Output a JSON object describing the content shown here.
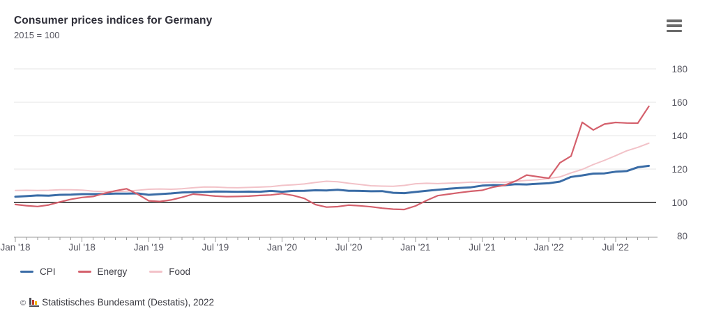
{
  "header": {
    "title": "Consumer prices indices for Germany",
    "subtitle": "2015 = 100",
    "menu_icon": "hamburger"
  },
  "chart_data": {
    "type": "line",
    "title": "Consumer prices indices for Germany",
    "subtitle": "2015 = 100",
    "x_start": "Jan 2018",
    "x_end": "Oct 2022",
    "x_frequency": "monthly",
    "x_tick_labels": [
      "Jan '18",
      "Jul '18",
      "Jan '19",
      "Jul '19",
      "Jan '20",
      "Jul '20",
      "Jan '21",
      "Jul '21",
      "Jan '22",
      "Jul '22"
    ],
    "ylim": [
      80,
      180
    ],
    "yticks": [
      80,
      100,
      120,
      140,
      160,
      180
    ],
    "baseline_value": 100,
    "grid": "horizontal",
    "legend_position": "bottom-left",
    "series": [
      {
        "name": "CPI",
        "color": "#3a6ca6",
        "line_width": 3,
        "values": [
          103.4,
          103.8,
          104.2,
          104.1,
          104.6,
          104.7,
          105.0,
          105.0,
          105.1,
          105.3,
          105.3,
          105.4,
          104.6,
          105.0,
          105.4,
          106.0,
          106.2,
          106.3,
          106.6,
          106.5,
          106.4,
          106.5,
          106.4,
          106.9,
          106.4,
          106.9,
          107.0,
          107.3,
          107.2,
          107.6,
          107.0,
          106.9,
          106.7,
          106.8,
          105.8,
          105.6,
          106.3,
          107.0,
          107.6,
          108.2,
          108.7,
          109.1,
          110.1,
          110.4,
          110.3,
          110.9,
          110.8,
          111.2,
          111.5,
          112.5,
          115.3,
          116.2,
          117.3,
          117.4,
          118.4,
          118.8,
          121.1,
          121.9
        ]
      },
      {
        "name": "Energy",
        "color": "#d4606c",
        "line_width": 2.2,
        "values": [
          98.8,
          98.1,
          97.6,
          98.5,
          100.3,
          101.9,
          103.0,
          103.6,
          105.4,
          107.0,
          108.2,
          105.0,
          101.0,
          100.6,
          101.5,
          103.1,
          105.0,
          104.4,
          103.8,
          103.5,
          103.6,
          103.8,
          104.2,
          104.5,
          105.3,
          104.2,
          102.4,
          98.7,
          97.2,
          97.5,
          98.4,
          98.0,
          97.4,
          96.6,
          96.0,
          95.8,
          97.9,
          101.2,
          104.1,
          105.0,
          105.9,
          106.7,
          107.3,
          109.2,
          110.3,
          112.8,
          116.4,
          115.4,
          114.5,
          123.8,
          127.8,
          148.0,
          143.4,
          146.9,
          147.9,
          147.6,
          147.5,
          157.6
        ]
      },
      {
        "name": "Food",
        "color": "#f2c2c8",
        "line_width": 2,
        "values": [
          107.2,
          107.3,
          107.2,
          107.3,
          107.6,
          107.6,
          107.4,
          106.8,
          106.5,
          106.6,
          106.8,
          107.3,
          107.9,
          108.1,
          107.9,
          108.2,
          108.8,
          109.3,
          109.2,
          108.9,
          108.8,
          109.0,
          109.2,
          109.5,
          110.2,
          110.6,
          111.1,
          112.0,
          112.7,
          112.4,
          111.5,
          110.8,
          110.0,
          109.8,
          109.7,
          110.2,
          111.2,
          111.5,
          111.3,
          111.6,
          111.8,
          112.2,
          111.9,
          112.2,
          112.1,
          112.7,
          113.2,
          113.6,
          114.4,
          115.3,
          117.7,
          119.8,
          122.7,
          125.2,
          128.0,
          130.9,
          133.0,
          135.5
        ]
      }
    ],
    "style": {
      "grid_color": "#e4e4e4",
      "baseline_color": "#555555",
      "axis_color": "#999999",
      "tick_label_color": "#55555f"
    }
  },
  "footer": {
    "copyright": "©",
    "source": "Statistisches Bundesamt (Destatis), 2022",
    "logo_icon": "mini-bar-chart",
    "logo_colors": [
      "#4d4d55",
      "#c0392b",
      "#f0b400"
    ]
  }
}
